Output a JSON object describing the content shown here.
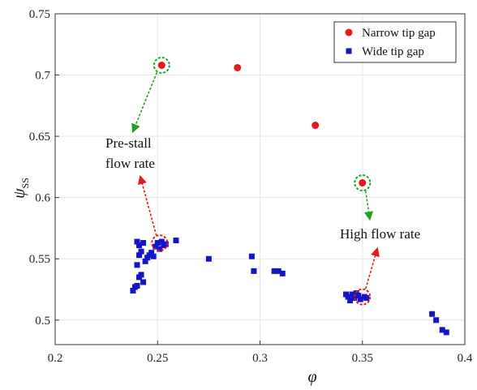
{
  "chart_data": {
    "type": "scatter",
    "xlabel": "φ",
    "ylabel": "ψ",
    "ylabel_sub": "SS",
    "xlim": [
      0.2,
      0.4
    ],
    "ylim": [
      0.48,
      0.75
    ],
    "xticks": [
      "0.2",
      "0.25",
      "0.3",
      "0.35",
      "0.4"
    ],
    "yticks": [
      "0.5",
      "0.55",
      "0.6",
      "0.65",
      "0.7",
      "0.75"
    ],
    "grid": true,
    "legend_position": "top-right",
    "series": [
      {
        "name": "Narrow tip gap",
        "marker": "circle",
        "color": "#e31a1c",
        "points": [
          [
            0.252,
            0.708
          ],
          [
            0.289,
            0.706
          ],
          [
            0.327,
            0.659
          ],
          [
            0.35,
            0.612
          ]
        ]
      },
      {
        "name": "Wide tip gap",
        "marker": "square",
        "color": "#1515c8",
        "points": [
          [
            0.238,
            0.524
          ],
          [
            0.239,
            0.527
          ],
          [
            0.24,
            0.528
          ],
          [
            0.241,
            0.535
          ],
          [
            0.242,
            0.537
          ],
          [
            0.24,
            0.545
          ],
          [
            0.241,
            0.553
          ],
          [
            0.242,
            0.556
          ],
          [
            0.243,
            0.563
          ],
          [
            0.24,
            0.564
          ],
          [
            0.241,
            0.561
          ],
          [
            0.243,
            0.531
          ],
          [
            0.244,
            0.548
          ],
          [
            0.245,
            0.551
          ],
          [
            0.246,
            0.553
          ],
          [
            0.247,
            0.555
          ],
          [
            0.248,
            0.552
          ],
          [
            0.249,
            0.56
          ],
          [
            0.25,
            0.563
          ],
          [
            0.251,
            0.558
          ],
          [
            0.252,
            0.564
          ],
          [
            0.253,
            0.561
          ],
          [
            0.254,
            0.562
          ],
          [
            0.259,
            0.565
          ],
          [
            0.275,
            0.55
          ],
          [
            0.296,
            0.552
          ],
          [
            0.297,
            0.54
          ],
          [
            0.307,
            0.54
          ],
          [
            0.309,
            0.54
          ],
          [
            0.311,
            0.538
          ],
          [
            0.342,
            0.521
          ],
          [
            0.343,
            0.519
          ],
          [
            0.344,
            0.516
          ],
          [
            0.345,
            0.521
          ],
          [
            0.346,
            0.518
          ],
          [
            0.347,
            0.522
          ],
          [
            0.348,
            0.52
          ],
          [
            0.349,
            0.517
          ],
          [
            0.351,
            0.519
          ],
          [
            0.352,
            0.518
          ],
          [
            0.384,
            0.505
          ],
          [
            0.386,
            0.5
          ],
          [
            0.389,
            0.492
          ],
          [
            0.391,
            0.49
          ]
        ]
      }
    ],
    "annotations": [
      {
        "lines": [
          "Pre-stall",
          "flow rate"
        ]
      },
      {
        "lines": [
          "High flow rate"
        ]
      }
    ],
    "highlight_circles": [
      {
        "x": 0.252,
        "y": 0.708,
        "color": "#22a022"
      },
      {
        "x": 0.35,
        "y": 0.612,
        "color": "#22a022"
      },
      {
        "x": 0.251,
        "y": 0.563,
        "color": "#e31a1c"
      },
      {
        "x": 0.35,
        "y": 0.519,
        "color": "#e31a1c"
      }
    ]
  }
}
